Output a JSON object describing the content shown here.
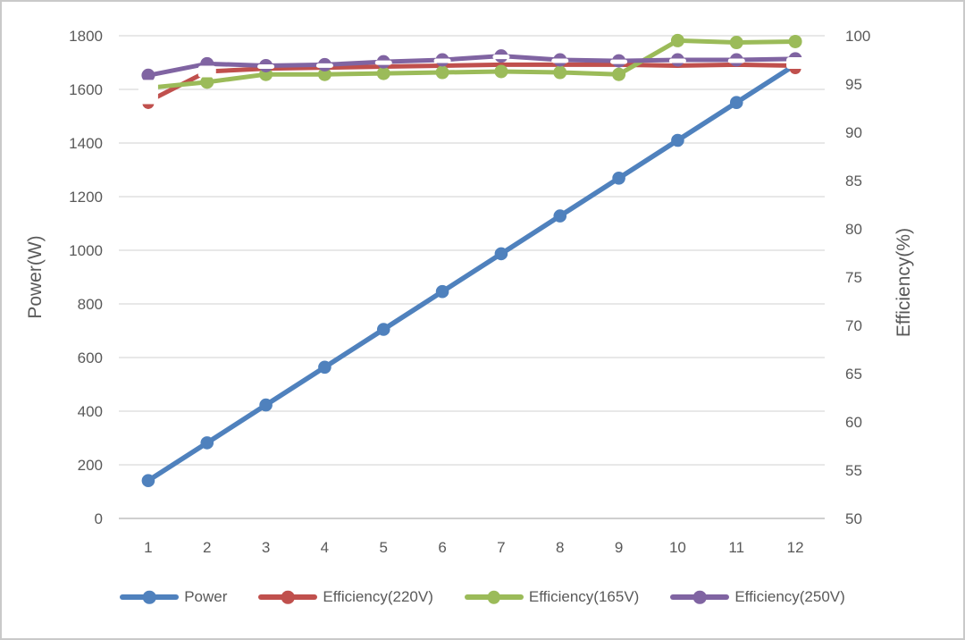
{
  "figure": {
    "left_axis_title": "Power(W)",
    "right_axis_title": "Efficiency(%)"
  },
  "colors": {
    "power_blue": "#4F81BD",
    "eff220_red": "#C0504D",
    "eff165_green": "#9BBB59",
    "eff250_purple": "#8064A2",
    "gridline": "#D9D9D9",
    "axis_line": "#BFBFBF",
    "text": "#595959",
    "marker_white": "#FFFFFF"
  },
  "chart_data": {
    "type": "line",
    "x": [
      1,
      2,
      3,
      4,
      5,
      6,
      7,
      8,
      9,
      10,
      11,
      12
    ],
    "x_axis": {
      "ticks": [
        "1",
        "2",
        "3",
        "4",
        "5",
        "6",
        "7",
        "8",
        "9",
        "10",
        "11",
        "12"
      ]
    },
    "left_axis": {
      "title": "Power(W)",
      "min": 0,
      "max": 1800,
      "tick_step": 200,
      "ticks": [
        1800,
        1600,
        1400,
        1200,
        1000,
        800,
        600,
        400,
        200,
        0
      ]
    },
    "right_axis": {
      "title": "Efficiency(%)",
      "min": 50,
      "max": 100,
      "tick_step": 5,
      "ticks": [
        100,
        95,
        90,
        85,
        80,
        75,
        70,
        65,
        60,
        55,
        50
      ]
    },
    "grid": "horizontal",
    "legend_position": "bottom",
    "series": [
      {
        "name": "Power",
        "axis": "left",
        "color": "#4F81BD",
        "values": [
          141,
          282,
          423,
          564,
          705,
          846,
          987,
          1128,
          1269,
          1410,
          1551,
          1692
        ]
      },
      {
        "name": "Efficiency(220V)",
        "axis": "right",
        "color": "#C0504D",
        "values": [
          93.2,
          96.3,
          96.6,
          96.7,
          96.8,
          96.9,
          97.0,
          97.0,
          97.0,
          96.9,
          97.0,
          96.9
        ]
      },
      {
        "name": "Efficiency(165V)",
        "axis": "right",
        "color": "#9BBB59",
        "values": [
          94.6,
          95.2,
          96.0,
          96.0,
          96.1,
          96.2,
          96.3,
          96.2,
          96.0,
          99.5,
          99.3,
          99.4
        ]
      },
      {
        "name": "Efficiency(250V)",
        "axis": "right",
        "color": "#8064A2",
        "values": [
          95.9,
          97.1,
          96.9,
          97.0,
          97.3,
          97.5,
          97.9,
          97.5,
          97.4,
          97.5,
          97.5,
          97.6
        ]
      }
    ]
  }
}
